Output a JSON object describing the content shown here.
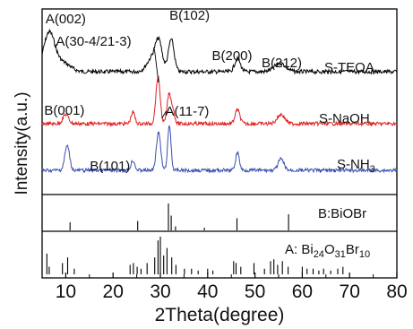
{
  "chart_data": {
    "type": "line",
    "xlabel": "2Theta(degree)",
    "ylabel": "Intensity(a.u.)",
    "xlim": [
      5,
      80
    ],
    "x_ticks": [
      10,
      20,
      30,
      40,
      50,
      60,
      70,
      80
    ],
    "x_tick_labels": [
      "10",
      "20",
      "30",
      "40",
      "50",
      "60",
      "70",
      "80"
    ],
    "series": [
      {
        "name": "S-TEOA",
        "color": "#000000",
        "peaks": [
          {
            "x": 6.5,
            "h": 0.9,
            "w": 1.2
          },
          {
            "x": 9.5,
            "h": 0.2,
            "w": 1.5
          },
          {
            "x": 28.5,
            "h": 0.35,
            "w": 1.2
          },
          {
            "x": 29.7,
            "h": 0.55,
            "w": 0.7
          },
          {
            "x": 32.3,
            "h": 0.75,
            "w": 0.6
          },
          {
            "x": 46.3,
            "h": 0.3,
            "w": 0.6
          },
          {
            "x": 55.3,
            "h": 0.2,
            "w": 1.2
          }
        ],
        "peak_labels": [
          {
            "text": "A(002)",
            "x": 6.5
          },
          {
            "text": "A(30-4/21-3)",
            "x": 28.0
          },
          {
            "text": "B(102)",
            "x": 32.3
          },
          {
            "text": "B(200)",
            "x": 46.0
          },
          {
            "text": "B(212)",
            "x": 55.0
          }
        ]
      },
      {
        "name": "S-NaOH",
        "color": "#e02020",
        "peaks": [
          {
            "x": 10.0,
            "h": 0.2,
            "w": 0.6
          },
          {
            "x": 24.2,
            "h": 0.25,
            "w": 0.4
          },
          {
            "x": 29.5,
            "h": 1.0,
            "w": 0.45
          },
          {
            "x": 31.8,
            "h": 0.6,
            "w": 0.4
          },
          {
            "x": 32.6,
            "h": 0.3,
            "w": 0.4
          },
          {
            "x": 46.3,
            "h": 0.3,
            "w": 0.5
          },
          {
            "x": 55.5,
            "h": 0.2,
            "w": 0.8
          }
        ],
        "peak_labels": [
          {
            "text": "B(001)",
            "x": 10.0
          },
          {
            "text": "A(11-7)",
            "x": 31.8
          }
        ]
      },
      {
        "name": "S-NH3",
        "color": "#3a4fb0",
        "peaks": [
          {
            "x": 10.3,
            "h": 0.55,
            "w": 0.5
          },
          {
            "x": 24.2,
            "h": 0.22,
            "w": 0.4
          },
          {
            "x": 29.6,
            "h": 0.85,
            "w": 0.45
          },
          {
            "x": 31.9,
            "h": 1.0,
            "w": 0.35
          },
          {
            "x": 46.3,
            "h": 0.4,
            "w": 0.4
          },
          {
            "x": 55.5,
            "h": 0.25,
            "w": 0.6
          }
        ],
        "peak_labels": [
          {
            "text": "B(101)",
            "x": 24.0
          }
        ]
      }
    ],
    "reference_patterns": [
      {
        "name": "B:BiOBr",
        "lines": [
          {
            "x": 10.9,
            "h": 0.3
          },
          {
            "x": 25.2,
            "h": 0.35
          },
          {
            "x": 31.7,
            "h": 1.0
          },
          {
            "x": 32.3,
            "h": 0.55
          },
          {
            "x": 46.2,
            "h": 0.45
          },
          {
            "x": 57.1,
            "h": 0.6
          },
          {
            "x": 33.2,
            "h": 0.15
          },
          {
            "x": 39.3,
            "h": 0.1
          }
        ]
      },
      {
        "name": "A: Bi24O31Br10",
        "lines": [
          {
            "x": 6.0,
            "h": 0.55
          },
          {
            "x": 6.5,
            "h": 0.2
          },
          {
            "x": 9.3,
            "h": 0.3
          },
          {
            "x": 10.4,
            "h": 0.45
          },
          {
            "x": 11.8,
            "h": 0.15
          },
          {
            "x": 23.6,
            "h": 0.25
          },
          {
            "x": 24.3,
            "h": 0.3
          },
          {
            "x": 25.1,
            "h": 0.2
          },
          {
            "x": 25.9,
            "h": 0.15
          },
          {
            "x": 27.2,
            "h": 0.3
          },
          {
            "x": 28.8,
            "h": 0.45
          },
          {
            "x": 29.5,
            "h": 0.9
          },
          {
            "x": 30.0,
            "h": 1.0
          },
          {
            "x": 30.7,
            "h": 0.5
          },
          {
            "x": 31.4,
            "h": 0.7
          },
          {
            "x": 32.4,
            "h": 0.45
          },
          {
            "x": 33.3,
            "h": 0.25
          },
          {
            "x": 35.1,
            "h": 0.15
          },
          {
            "x": 36.6,
            "h": 0.15
          },
          {
            "x": 38.0,
            "h": 0.1
          },
          {
            "x": 40.0,
            "h": 0.15
          },
          {
            "x": 41.1,
            "h": 0.1
          },
          {
            "x": 45.5,
            "h": 0.35
          },
          {
            "x": 46.0,
            "h": 0.3
          },
          {
            "x": 47.0,
            "h": 0.2
          },
          {
            "x": 49.8,
            "h": 0.3
          },
          {
            "x": 52.0,
            "h": 0.15
          },
          {
            "x": 53.3,
            "h": 0.35
          },
          {
            "x": 54.0,
            "h": 0.4
          },
          {
            "x": 54.8,
            "h": 0.25
          },
          {
            "x": 55.8,
            "h": 0.35
          },
          {
            "x": 57.0,
            "h": 0.2
          },
          {
            "x": 60.0,
            "h": 0.2
          },
          {
            "x": 61.0,
            "h": 0.15
          },
          {
            "x": 62.3,
            "h": 0.15
          },
          {
            "x": 63.5,
            "h": 0.1
          },
          {
            "x": 64.5,
            "h": 0.15
          },
          {
            "x": 66.0,
            "h": 0.1
          },
          {
            "x": 67.5,
            "h": 0.15
          },
          {
            "x": 68.6,
            "h": 0.2
          }
        ]
      }
    ]
  }
}
